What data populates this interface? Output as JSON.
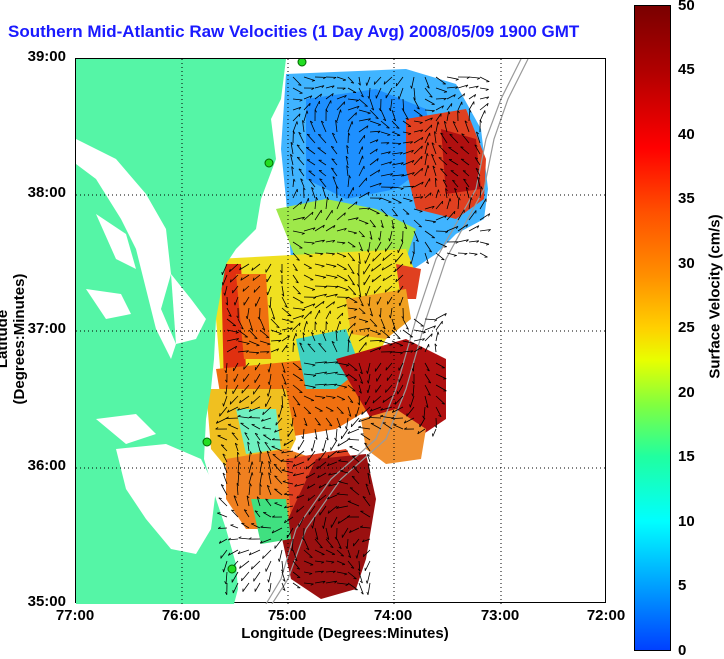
{
  "title": "Southern Mid-Atlantic Raw Velocities (1 Day Avg) 2008/05/09 1900 GMT",
  "xlabel": "Longitude (Degrees:Minutes)",
  "ylabel": "Latitude (Degrees:Minutes)",
  "x_ticks": [
    "77:00",
    "76:00",
    "75:00",
    "74:00",
    "73:00",
    "72:00"
  ],
  "y_ticks": [
    "39:00",
    "38:00",
    "37:00",
    "36:00",
    "35:00"
  ],
  "colorbar": {
    "title": "Surface Velocity (cm/s)",
    "ticks": [
      "50",
      "45",
      "40",
      "35",
      "30",
      "25",
      "20",
      "15",
      "10",
      "5",
      "0"
    ],
    "range": [
      0,
      50
    ]
  },
  "colors": {
    "land": "#55f5a6",
    "title": "#1a1aff",
    "grid": "#000000",
    "bathymetry": "#9a9a9a"
  },
  "chart_data": {
    "type": "heatmap",
    "title": "Southern Mid-Atlantic Raw Velocities (1 Day Avg) 2008/05/09 1900 GMT",
    "xlabel": "Longitude (Degrees:Minutes)",
    "ylabel": "Latitude (Degrees:Minutes)",
    "xlim": [
      "77:00",
      "72:00"
    ],
    "ylim": [
      "35:00",
      "39:00"
    ],
    "grid": true,
    "colorbar_label": "Surface Velocity (cm/s)",
    "color_range": [
      0,
      50
    ]
  }
}
